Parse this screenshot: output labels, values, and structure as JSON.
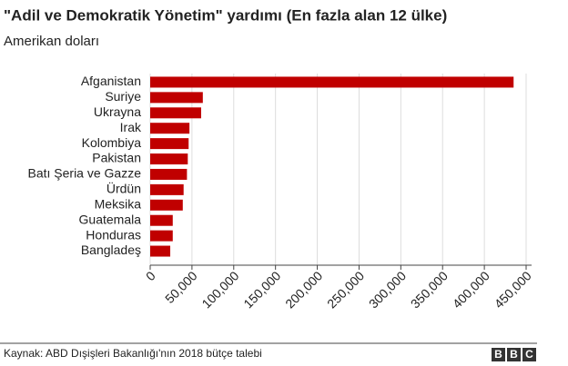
{
  "chart_data": {
    "type": "bar",
    "orientation": "horizontal",
    "title": "\"Adil ve Demokratik Yönetim\" yardımı (En fazla alan 12 ülke)",
    "subtitle": "Amerikan doları",
    "categories": [
      "Afganistan",
      "Suriye",
      "Ukrayna",
      "Irak",
      "Kolombiya",
      "Pakistan",
      "Batı Şeria ve Gazze",
      "Ürdün",
      "Meksika",
      "Guatemala",
      "Honduras",
      "Bangladeş"
    ],
    "values": [
      435000,
      63000,
      61000,
      47000,
      46000,
      45000,
      44000,
      40000,
      39000,
      27000,
      27000,
      24000
    ],
    "color": "#c00000",
    "xlim": [
      0,
      450000
    ],
    "xticks": [
      0,
      {
        "value": 50000,
        "label": "50,000"
      },
      {
        "value": 100000,
        "label": "100,000"
      },
      {
        "value": 150000,
        "label": "150,000"
      },
      {
        "value": 200000,
        "label": "200,000"
      },
      {
        "value": 250000,
        "label": "250,000"
      },
      {
        "value": 300000,
        "label": "300,000"
      },
      {
        "value": 350000,
        "label": "350,000"
      },
      {
        "value": 400000,
        "label": "400,000"
      },
      {
        "value": 450000,
        "label": "450,000"
      }
    ],
    "grid": true
  },
  "footer": {
    "source": "Kaynak: ABD Dışişleri Bakanlığı'nın 2018 bütçe talebi",
    "logo": "BBC"
  }
}
